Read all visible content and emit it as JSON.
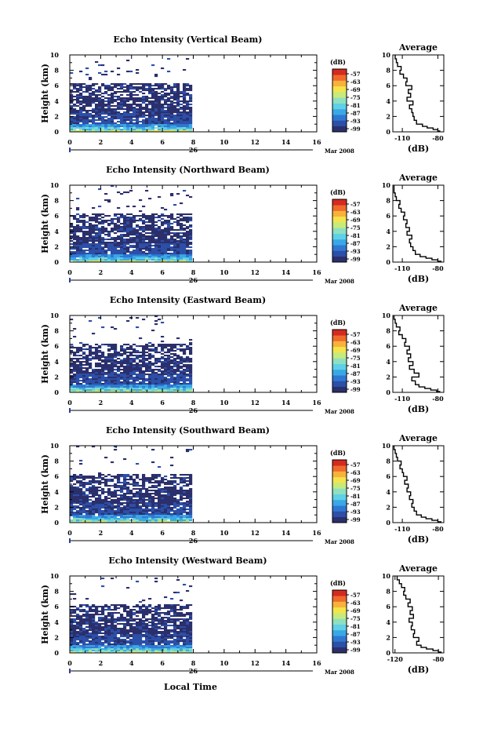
{
  "xlabel": "Local Time",
  "date_label": "Mar 2008",
  "day_label": "26",
  "unit_label": "(dB)",
  "average_title": "Average",
  "colorbar_ticks": [
    "-57",
    "-63",
    "-69",
    "-75",
    "-81",
    "-87",
    "-93",
    "-99"
  ],
  "colormap": [
    "#2b2f6b",
    "#2c4fa8",
    "#2f78d2",
    "#3aa8e6",
    "#5fd0e6",
    "#8ee0c0",
    "#c6ea7c",
    "#f4e44c",
    "#f8b23a",
    "#f06a2c",
    "#d62a20"
  ],
  "chart_data": [
    {
      "type": "heatmap",
      "title": "Echo Intensity (Vertical Beam)",
      "ylabel": "Height (km)",
      "x_ticks": [
        0,
        2,
        4,
        6,
        8,
        10,
        12,
        14,
        16
      ],
      "y_ticks": [
        0,
        2,
        4,
        6,
        8,
        10
      ],
      "xlim": [
        0,
        16
      ],
      "ylim": [
        0,
        10
      ],
      "data_end_hour": 7.8,
      "db_range": [
        -99,
        -57
      ],
      "average_profile": {
        "xlim": [
          -118,
          -75
        ],
        "x_ticks": [
          -110,
          -80
        ],
        "y_ticks": [
          0,
          2,
          4,
          6,
          8,
          10
        ],
        "height_km": [
          0.1,
          0.3,
          0.5,
          0.7,
          1,
          1.5,
          2,
          2.5,
          3,
          3.5,
          4,
          4.5,
          5,
          5.5,
          6,
          6.5,
          7,
          7.5,
          8,
          8.5,
          9,
          9.5,
          10
        ],
        "value_db": [
          -78,
          -80,
          -84,
          -89,
          -93,
          -98,
          -100,
          -101,
          -102,
          -104,
          -101,
          -106,
          -103,
          -105,
          -102,
          -107,
          -106,
          -109,
          -112,
          -111,
          -114,
          -115,
          -116
        ]
      }
    },
    {
      "type": "heatmap",
      "title": "Echo Intensity (Northward Beam)",
      "ylabel": "Height (km)",
      "x_ticks": [
        0,
        2,
        4,
        6,
        8,
        10,
        12,
        14,
        16
      ],
      "y_ticks": [
        0,
        2,
        4,
        6,
        8,
        10
      ],
      "xlim": [
        0,
        16
      ],
      "ylim": [
        0,
        10
      ],
      "data_end_hour": 7.8,
      "db_range": [
        -99,
        -57
      ],
      "average_profile": {
        "xlim": [
          -118,
          -75
        ],
        "x_ticks": [
          -110,
          -80
        ],
        "y_ticks": [
          0,
          2,
          4,
          6,
          8,
          10
        ],
        "height_km": [
          0.1,
          0.3,
          0.5,
          0.7,
          1,
          1.5,
          2,
          2.5,
          3,
          3.5,
          4,
          4.5,
          5,
          5.5,
          6,
          6.5,
          7,
          7.5,
          8,
          8.5,
          9,
          9.5,
          10
        ],
        "value_db": [
          -77,
          -80,
          -85,
          -90,
          -95,
          -99,
          -101,
          -103,
          -104,
          -102,
          -106,
          -104,
          -107,
          -106,
          -109,
          -108,
          -111,
          -113,
          -112,
          -115,
          -116,
          -117,
          -117
        ]
      }
    },
    {
      "type": "heatmap",
      "title": "Echo Intensity (Eastward Beam)",
      "ylabel": "Height (km)",
      "x_ticks": [
        0,
        2,
        4,
        6,
        8,
        10,
        12,
        14,
        16
      ],
      "y_ticks": [
        0,
        2,
        4,
        6,
        8,
        10
      ],
      "xlim": [
        0,
        16
      ],
      "ylim": [
        0,
        10
      ],
      "data_end_hour": 7.8,
      "db_range": [
        -99,
        -57
      ],
      "average_profile": {
        "xlim": [
          -118,
          -75
        ],
        "x_ticks": [
          -110,
          -80
        ],
        "y_ticks": [
          0,
          2,
          4,
          6,
          8,
          10
        ],
        "height_km": [
          0.1,
          0.3,
          0.5,
          0.7,
          1,
          1.5,
          2,
          2.5,
          3,
          3.5,
          4,
          4.5,
          5,
          5.5,
          6,
          6.5,
          7,
          7.5,
          8,
          8.5,
          9,
          9.5,
          10
        ],
        "value_db": [
          -78,
          -81,
          -86,
          -91,
          -96,
          -99,
          -102,
          -96,
          -100,
          -104,
          -101,
          -105,
          -103,
          -106,
          -104,
          -108,
          -107,
          -110,
          -113,
          -112,
          -115,
          -116,
          -117
        ]
      }
    },
    {
      "type": "heatmap",
      "title": "Echo Intensity (Southward Beam)",
      "ylabel": "Height (km)",
      "x_ticks": [
        0,
        2,
        4,
        6,
        8,
        10,
        12,
        14,
        16
      ],
      "y_ticks": [
        0,
        2,
        4,
        6,
        8,
        10
      ],
      "xlim": [
        0,
        16
      ],
      "ylim": [
        0,
        10
      ],
      "data_end_hour": 7.8,
      "db_range": [
        -99,
        -57
      ],
      "average_profile": {
        "xlim": [
          -118,
          -75
        ],
        "x_ticks": [
          -110,
          -80
        ],
        "y_ticks": [
          0,
          2,
          4,
          6,
          8,
          10
        ],
        "height_km": [
          0.1,
          0.3,
          0.5,
          0.7,
          1,
          1.5,
          2,
          2.5,
          3,
          3.5,
          4,
          4.5,
          5,
          5.5,
          6,
          6.5,
          7,
          7.5,
          8,
          8.5,
          9,
          9.5,
          10
        ],
        "value_db": [
          -77,
          -80,
          -85,
          -90,
          -94,
          -98,
          -100,
          -102,
          -101,
          -104,
          -103,
          -106,
          -105,
          -108,
          -106,
          -109,
          -110,
          -112,
          -111,
          -114,
          -115,
          -116,
          -117
        ]
      }
    },
    {
      "type": "heatmap",
      "title": "Echo Intensity (Westward Beam)",
      "ylabel": "Height (km)",
      "x_ticks": [
        0,
        2,
        4,
        6,
        8,
        10,
        12,
        14,
        16
      ],
      "y_ticks": [
        0,
        2,
        4,
        6,
        8,
        10
      ],
      "xlim": [
        0,
        16
      ],
      "ylim": [
        0,
        10
      ],
      "data_end_hour": 7.8,
      "db_range": [
        -99,
        -57
      ],
      "average_profile": {
        "xlim": [
          -122,
          -75
        ],
        "x_ticks": [
          -120,
          -80
        ],
        "y_ticks": [
          0,
          2,
          4,
          6,
          8,
          10
        ],
        "height_km": [
          0.1,
          0.3,
          0.5,
          0.7,
          1,
          1.5,
          2,
          2.5,
          3,
          3.5,
          4,
          4.5,
          5,
          5.5,
          6,
          6.5,
          7,
          7.5,
          8,
          8.5,
          9,
          9.5,
          10
        ],
        "value_db": [
          -77,
          -80,
          -85,
          -91,
          -96,
          -100,
          -98,
          -103,
          -102,
          -105,
          -104,
          -107,
          -103,
          -106,
          -104,
          -108,
          -106,
          -110,
          -112,
          -111,
          -114,
          -116,
          -118
        ]
      }
    }
  ]
}
